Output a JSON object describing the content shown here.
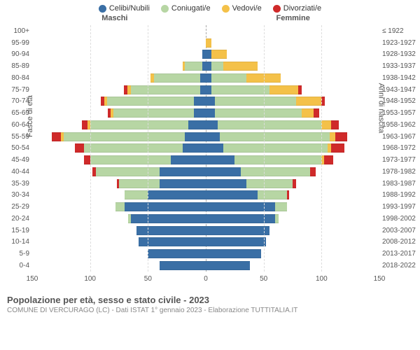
{
  "legend": [
    {
      "label": "Celibi/Nubili",
      "color": "#3a6fa5"
    },
    {
      "label": "Coniugati/e",
      "color": "#b7d6a4"
    },
    {
      "label": "Vedovi/e",
      "color": "#f4c149"
    },
    {
      "label": "Divorziati/e",
      "color": "#cf2a2a"
    }
  ],
  "headers": {
    "male": "Maschi",
    "female": "Femmine"
  },
  "axis": {
    "left_title": "Fasce di età",
    "right_title": "Anni di nascita",
    "xmax": 150,
    "ticks": [
      150,
      100,
      50,
      0,
      50,
      100,
      150
    ]
  },
  "colors": {
    "celibi": "#3a6fa5",
    "coniugati": "#b7d6a4",
    "vedovi": "#f4c149",
    "divorziati": "#cf2a2a",
    "grid": "#dddddd",
    "center": "#aaaaaa",
    "bg": "#ffffff"
  },
  "title": "Popolazione per età, sesso e stato civile - 2023",
  "subtitle": "COMUNE DI VERCURAGO (LC) - Dati ISTAT 1° gennaio 2023 - Elaborazione TUTTITALIA.IT",
  "rows": [
    {
      "age": "100+",
      "birth": "≤ 1922",
      "m": [
        0,
        0,
        0,
        0
      ],
      "f": [
        0,
        0,
        0,
        0
      ]
    },
    {
      "age": "95-99",
      "birth": "1923-1927",
      "m": [
        0,
        0,
        0,
        0
      ],
      "f": [
        0,
        0,
        5,
        0
      ]
    },
    {
      "age": "90-94",
      "birth": "1928-1932",
      "m": [
        3,
        0,
        0,
        0
      ],
      "f": [
        5,
        0,
        13,
        0
      ]
    },
    {
      "age": "85-89",
      "birth": "1933-1937",
      "m": [
        3,
        15,
        2,
        0
      ],
      "f": [
        5,
        10,
        30,
        0
      ]
    },
    {
      "age": "80-84",
      "birth": "1938-1942",
      "m": [
        5,
        40,
        3,
        0
      ],
      "f": [
        5,
        30,
        30,
        0
      ]
    },
    {
      "age": "75-79",
      "birth": "1943-1947",
      "m": [
        5,
        60,
        3,
        3
      ],
      "f": [
        5,
        50,
        25,
        3
      ]
    },
    {
      "age": "70-74",
      "birth": "1948-1952",
      "m": [
        10,
        75,
        3,
        3
      ],
      "f": [
        8,
        70,
        22,
        3
      ]
    },
    {
      "age": "65-69",
      "birth": "1953-1957",
      "m": [
        10,
        70,
        2,
        3
      ],
      "f": [
        8,
        75,
        10,
        5
      ]
    },
    {
      "age": "60-64",
      "birth": "1958-1962",
      "m": [
        15,
        85,
        2,
        5
      ],
      "f": [
        10,
        90,
        8,
        7
      ]
    },
    {
      "age": "55-59",
      "birth": "1963-1967",
      "m": [
        18,
        105,
        2,
        8
      ],
      "f": [
        12,
        95,
        5,
        10
      ]
    },
    {
      "age": "50-54",
      "birth": "1968-1972",
      "m": [
        20,
        85,
        0,
        8
      ],
      "f": [
        15,
        90,
        3,
        12
      ]
    },
    {
      "age": "45-49",
      "birth": "1973-1977",
      "m": [
        30,
        70,
        0,
        5
      ],
      "f": [
        25,
        75,
        2,
        8
      ]
    },
    {
      "age": "40-44",
      "birth": "1978-1982",
      "m": [
        40,
        55,
        0,
        3
      ],
      "f": [
        30,
        60,
        0,
        5
      ]
    },
    {
      "age": "35-39",
      "birth": "1983-1987",
      "m": [
        40,
        35,
        0,
        2
      ],
      "f": [
        35,
        40,
        0,
        3
      ]
    },
    {
      "age": "30-34",
      "birth": "1988-1992",
      "m": [
        50,
        20,
        0,
        0
      ],
      "f": [
        45,
        25,
        0,
        2
      ]
    },
    {
      "age": "25-29",
      "birth": "1993-1997",
      "m": [
        70,
        8,
        0,
        0
      ],
      "f": [
        60,
        10,
        0,
        0
      ]
    },
    {
      "age": "20-24",
      "birth": "1998-2002",
      "m": [
        65,
        2,
        0,
        0
      ],
      "f": [
        60,
        3,
        0,
        0
      ]
    },
    {
      "age": "15-19",
      "birth": "2003-2007",
      "m": [
        60,
        0,
        0,
        0
      ],
      "f": [
        55,
        0,
        0,
        0
      ]
    },
    {
      "age": "10-14",
      "birth": "2008-2012",
      "m": [
        58,
        0,
        0,
        0
      ],
      "f": [
        52,
        0,
        0,
        0
      ]
    },
    {
      "age": "5-9",
      "birth": "2013-2017",
      "m": [
        50,
        0,
        0,
        0
      ],
      "f": [
        48,
        0,
        0,
        0
      ]
    },
    {
      "age": "0-4",
      "birth": "2018-2022",
      "m": [
        40,
        0,
        0,
        0
      ],
      "f": [
        38,
        0,
        0,
        0
      ]
    }
  ]
}
